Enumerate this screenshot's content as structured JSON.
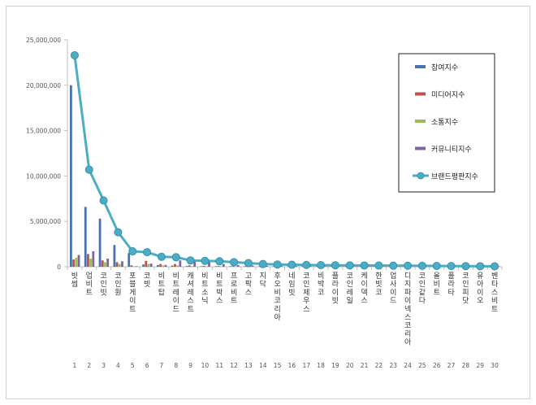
{
  "chart_data": {
    "type": "bar",
    "title": "",
    "xlabel": "",
    "ylabel": "",
    "ylim": [
      0,
      25000000
    ],
    "yticks": [
      0,
      5000000,
      10000000,
      15000000,
      20000000,
      25000000
    ],
    "ytick_labels": [
      "0",
      "5,000,000",
      "10,000,000",
      "15,000,000",
      "20,000,000",
      "25,000,000"
    ],
    "grid": false,
    "legend_position": "top-right",
    "ranks": [
      "1",
      "2",
      "3",
      "4",
      "5",
      "6",
      "7",
      "8",
      "9",
      "10",
      "11",
      "12",
      "13",
      "14",
      "15",
      "16",
      "17",
      "18",
      "19",
      "20",
      "21",
      "22",
      "23",
      "24",
      "25",
      "26",
      "27",
      "28",
      "29",
      "30"
    ],
    "categories": [
      "빗썸",
      "업비트",
      "코인빗",
      "코인원",
      "포블게이트",
      "코빗",
      "비트탑",
      "비트레이드",
      "캐셔레스트",
      "비트소닉",
      "비트박스",
      "프로비트",
      "고팍스",
      "지닥",
      "후오비코리아",
      "네임빗",
      "코인제우스",
      "비박코",
      "플라이빗",
      "코인레일",
      "케이덱스",
      "한빗코",
      "업사이드",
      "디지파이넥스코리아",
      "코인같다",
      "올비트",
      "플라타",
      "코인피닷",
      "유아이오",
      "벤타스비트"
    ],
    "series": [
      {
        "name": "참여지수",
        "type": "bar",
        "color": "#4a72b0",
        "values": [
          20000000,
          6600000,
          5300000,
          2400000,
          1500000,
          250000,
          180000,
          130000,
          80000,
          60000,
          50000,
          40000,
          35000,
          30000,
          25000,
          20000,
          18000,
          15000,
          12000,
          10000,
          9000,
          8000,
          7000,
          6000,
          5000,
          4000,
          3500,
          3000,
          2500,
          2000
        ]
      },
      {
        "name": "미디어지수",
        "type": "bar",
        "color": "#c0504d",
        "values": [
          800000,
          1400000,
          700000,
          500000,
          150000,
          650000,
          300000,
          300000,
          150000,
          100000,
          80000,
          70000,
          60000,
          50000,
          40000,
          30000,
          25000,
          20000,
          18000,
          15000,
          12000,
          10000,
          9000,
          8000,
          7000,
          6000,
          5000,
          4000,
          3000,
          2500
        ]
      },
      {
        "name": "소통지수",
        "type": "bar",
        "color": "#9bbb59",
        "values": [
          1000000,
          900000,
          500000,
          300000,
          50000,
          300000,
          150000,
          150000,
          70000,
          40000,
          30000,
          25000,
          20000,
          15000,
          12000,
          10000,
          8000,
          7000,
          6000,
          5000,
          4000,
          3500,
          3000,
          2500,
          2000,
          1500,
          1200,
          1000,
          800,
          600
        ]
      },
      {
        "name": "커뮤니티지수",
        "type": "bar",
        "color": "#8064a2",
        "values": [
          1300000,
          1700000,
          900000,
          600000,
          50000,
          350000,
          200000,
          700000,
          650000,
          550000,
          300000,
          200000,
          150000,
          100000,
          80000,
          70000,
          60000,
          50000,
          40000,
          35000,
          30000,
          25000,
          20000,
          18000,
          15000,
          12000,
          10000,
          8000,
          6000,
          5000
        ]
      },
      {
        "name": "브랜드평판지수",
        "type": "line",
        "color": "#4bacc6",
        "values": [
          23300000,
          10700000,
          7300000,
          3800000,
          1700000,
          1600000,
          1100000,
          1050000,
          700000,
          650000,
          600000,
          500000,
          400000,
          300000,
          250000,
          220000,
          200000,
          180000,
          160000,
          150000,
          140000,
          130000,
          120000,
          110000,
          100000,
          90000,
          80000,
          70000,
          60000,
          50000
        ]
      }
    ]
  }
}
